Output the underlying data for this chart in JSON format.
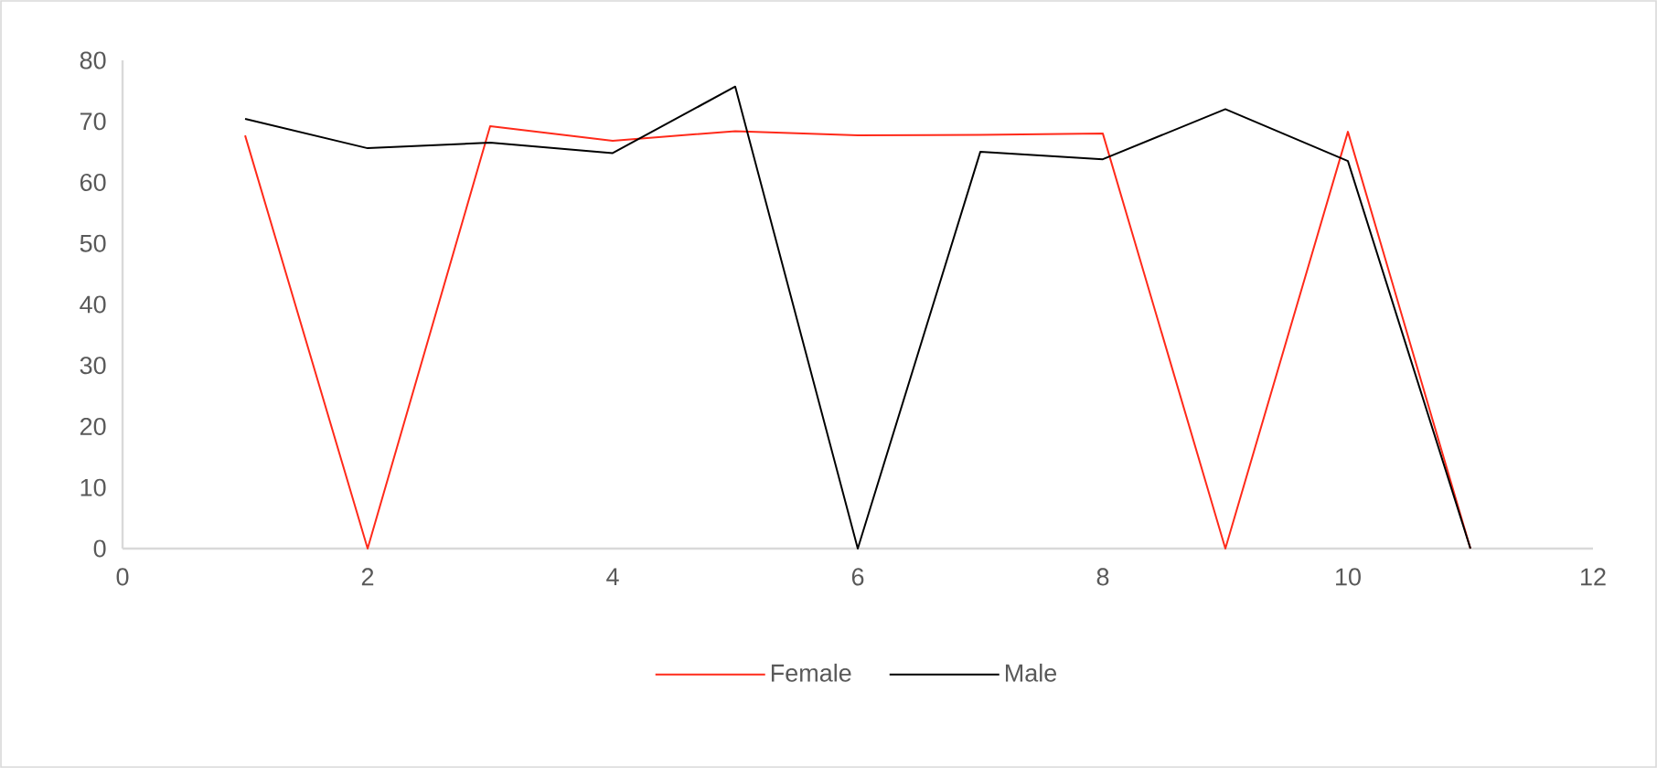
{
  "chart_data": {
    "type": "line",
    "xlim": [
      0,
      12
    ],
    "xticks": [
      0,
      2,
      4,
      6,
      8,
      10,
      12
    ],
    "ylim": [
      0,
      80
    ],
    "yticks": [
      0,
      10,
      20,
      30,
      40,
      50,
      60,
      70,
      80
    ],
    "grid": false,
    "legend": "bottom",
    "marker": "none",
    "line_style": "solid",
    "x": [
      1,
      2,
      3,
      4,
      5,
      6,
      7,
      8,
      9,
      10,
      11
    ],
    "series": [
      {
        "name": "Female",
        "color": "#ff2a1a",
        "values": [
          67.7,
          0,
          69.2,
          66.8,
          68.4,
          67.7,
          67.8,
          68.0,
          0,
          68.3,
          0
        ]
      },
      {
        "name": "Male",
        "color": "#000000",
        "values": [
          70.4,
          65.6,
          66.5,
          64.8,
          75.7,
          0,
          65.0,
          63.8,
          72.0,
          63.5,
          0
        ]
      }
    ]
  }
}
